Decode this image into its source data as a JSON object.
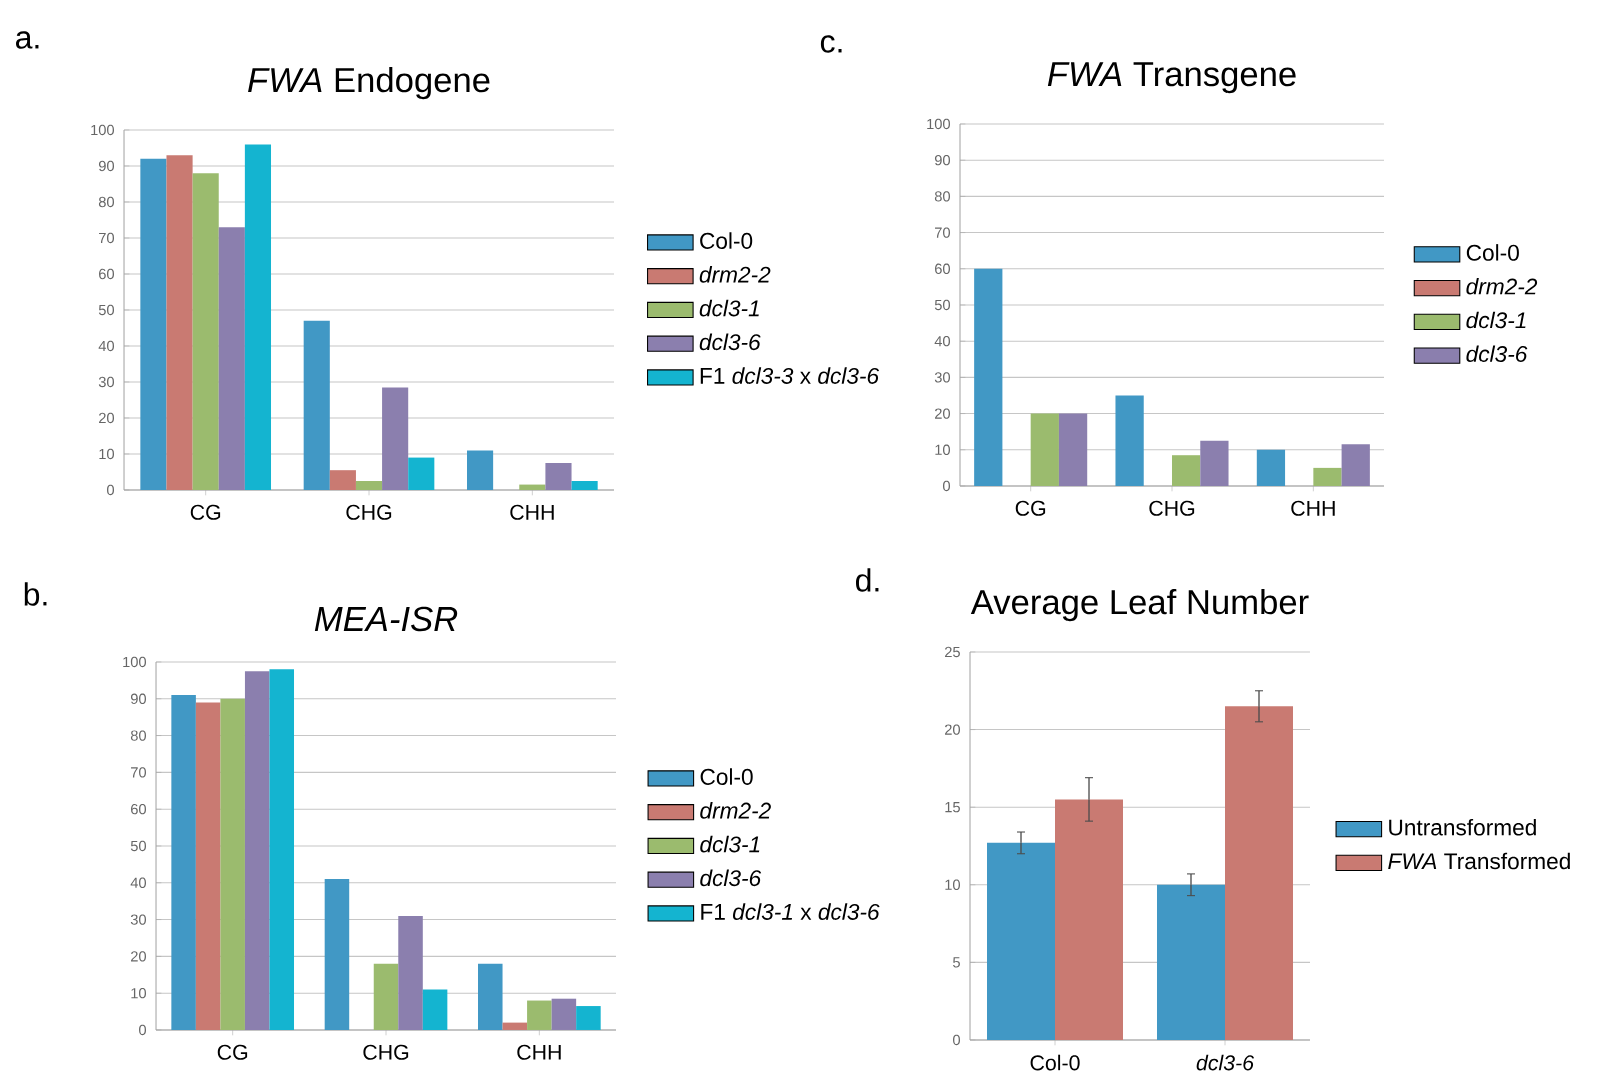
{
  "chart_data": [
    {
      "type": "bar",
      "title": "*FWA* Endogene",
      "annotations": [
        "a."
      ],
      "categories": [
        "CG",
        "CHG",
        "CHH"
      ],
      "ylim": [
        0,
        100
      ],
      "yticks": [
        0,
        10,
        20,
        30,
        40,
        50,
        60,
        70,
        80,
        90,
        100
      ],
      "grid": "y",
      "legend": "right",
      "series": [
        {
          "name": "Col-0",
          "color": "#4198c5",
          "values": [
            92,
            47,
            11
          ]
        },
        {
          "name": "*drm2-2*",
          "color": "#c97a72",
          "values": [
            93,
            5.5,
            0
          ]
        },
        {
          "name": "*dcl3-1*",
          "color": "#9bbb6e",
          "values": [
            88,
            2.5,
            1.5
          ]
        },
        {
          "name": "*dcl3-6*",
          "color": "#8b7fae",
          "values": [
            73,
            28.5,
            7.5
          ]
        },
        {
          "name": "F1 *dcl3-3* x *dcl3-6*",
          "color": "#14b4d0",
          "values": [
            96,
            9,
            2.5
          ]
        }
      ]
    },
    {
      "type": "bar",
      "title": "*FWA* Transgene",
      "annotations": [
        "c."
      ],
      "categories": [
        "CG",
        "CHG",
        "CHH"
      ],
      "ylim": [
        0,
        100
      ],
      "yticks": [
        0,
        10,
        20,
        30,
        40,
        50,
        60,
        70,
        80,
        90,
        100
      ],
      "grid": "y",
      "legend": "right",
      "series": [
        {
          "name": "Col-0",
          "color": "#4198c5",
          "values": [
            60,
            25,
            10
          ]
        },
        {
          "name": "*drm2-2*",
          "color": "#c97a72",
          "values": [
            0,
            0,
            0
          ]
        },
        {
          "name": "*dcl3-1*",
          "color": "#9bbb6e",
          "values": [
            20,
            8.5,
            5
          ]
        },
        {
          "name": "*dcl3-6*",
          "color": "#8b7fae",
          "values": [
            20,
            12.5,
            11.5
          ]
        }
      ]
    },
    {
      "type": "bar",
      "title": "*MEA-ISR*",
      "annotations": [
        "b."
      ],
      "categories": [
        "CG",
        "CHG",
        "CHH"
      ],
      "ylim": [
        0,
        100
      ],
      "yticks": [
        0,
        10,
        20,
        30,
        40,
        50,
        60,
        70,
        80,
        90,
        100
      ],
      "grid": "y",
      "legend": "right",
      "series": [
        {
          "name": "Col-0",
          "color": "#4198c5",
          "values": [
            91,
            41,
            18
          ]
        },
        {
          "name": "*drm2-2*",
          "color": "#c97a72",
          "values": [
            89,
            0,
            2
          ]
        },
        {
          "name": "*dcl3-1*",
          "color": "#9bbb6e",
          "values": [
            90,
            18,
            8
          ]
        },
        {
          "name": "*dcl3-6*",
          "color": "#8b7fae",
          "values": [
            97.5,
            31,
            8.5
          ]
        },
        {
          "name": "F1 *dcl3-1* x *dcl3-6*",
          "color": "#14b4d0",
          "values": [
            98,
            11,
            6.5
          ]
        }
      ]
    },
    {
      "type": "bar",
      "title": "Average Leaf Number",
      "annotations": [
        "d."
      ],
      "categories": [
        "Col-0",
        "*dcl3-6*"
      ],
      "ylim": [
        0,
        25
      ],
      "yticks": [
        0,
        5,
        10,
        15,
        20,
        25
      ],
      "grid": "y",
      "legend": "right",
      "series": [
        {
          "name": "Untransformed",
          "color": "#4198c5",
          "values": [
            12.7,
            10
          ],
          "errors": [
            0.7,
            0.7
          ]
        },
        {
          "name": "*FWA* Transformed",
          "color": "#c97a72",
          "values": [
            15.5,
            21.5
          ],
          "errors": [
            1.4,
            1
          ]
        }
      ]
    }
  ]
}
